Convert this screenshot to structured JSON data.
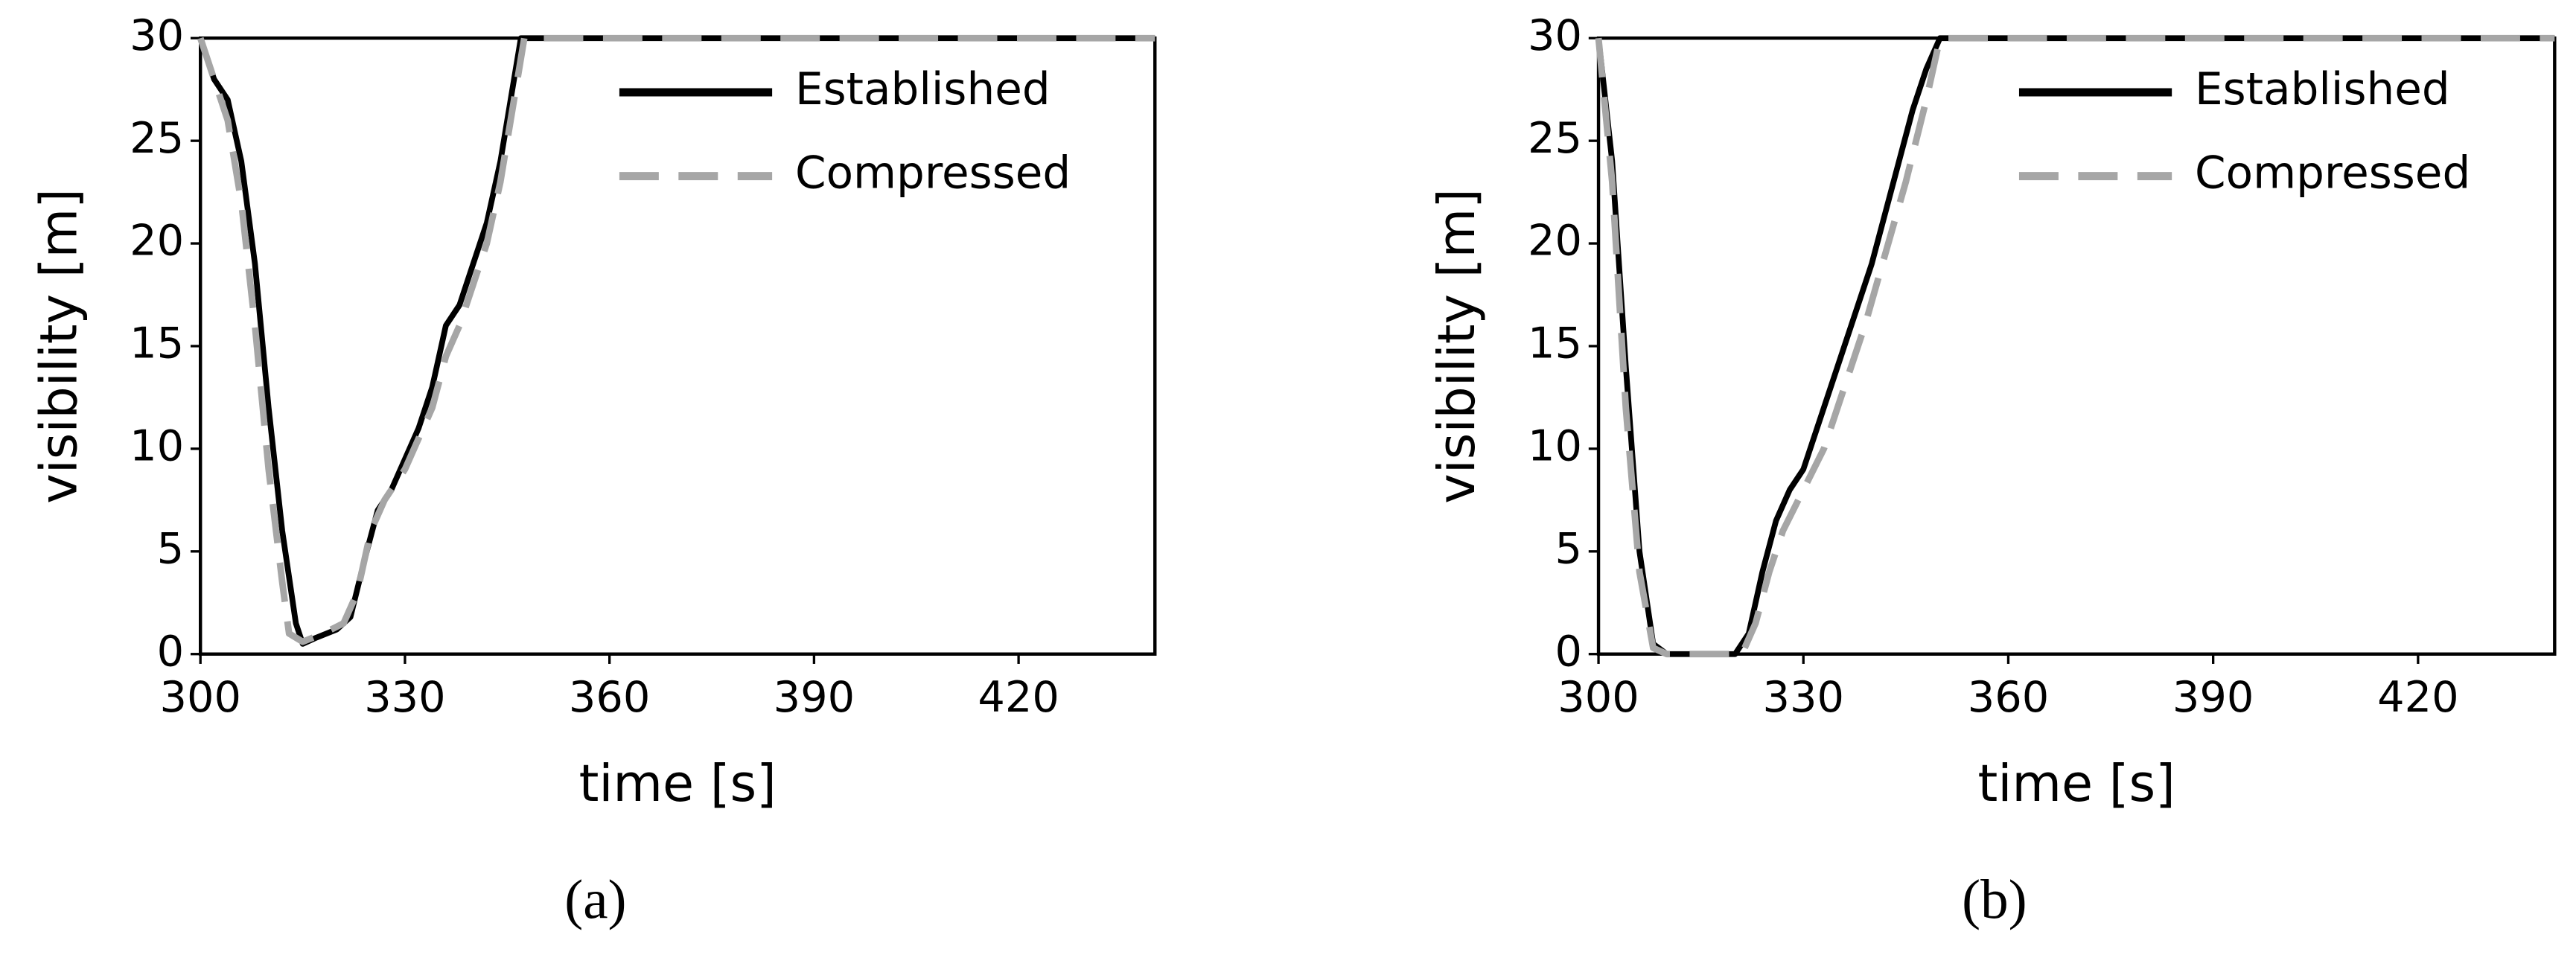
{
  "chart_data": [
    {
      "type": "line",
      "label": "(a)",
      "x_label": "time [s]",
      "y_label": "visibility [m]",
      "xlim": [
        300,
        440
      ],
      "xticks": [
        300,
        330,
        360,
        390,
        420
      ],
      "ylim": [
        0,
        30
      ],
      "yticks": [
        0,
        5,
        10,
        15,
        20,
        25,
        30
      ],
      "grid": false,
      "legend": "upper right",
      "series": [
        {
          "name": "Established",
          "color": "#000000",
          "dashed": false,
          "x": [
            300,
            302,
            304,
            306,
            308,
            310,
            312,
            314,
            315,
            317,
            320,
            322,
            324,
            326,
            328,
            330,
            332,
            334,
            336,
            338,
            340,
            342,
            344,
            346,
            347,
            440
          ],
          "values": [
            30,
            28,
            27,
            24,
            19,
            12,
            6,
            1.5,
            0.5,
            0.8,
            1.2,
            1.8,
            4.5,
            7,
            8,
            9.5,
            11,
            13,
            16,
            17,
            19,
            21,
            24,
            28,
            30,
            30
          ]
        },
        {
          "name": "Compressed",
          "color": "#a6a6a6",
          "dashed": true,
          "x": [
            300,
            302,
            304,
            306,
            308,
            310,
            312,
            313,
            315,
            318,
            321,
            323,
            325,
            327,
            330,
            332,
            334,
            336,
            338,
            340,
            342,
            344,
            346,
            347.5,
            440
          ],
          "values": [
            30,
            28,
            26,
            22,
            16,
            9,
            3.5,
            1,
            0.6,
            1,
            1.5,
            3,
            6,
            7.5,
            9,
            10.5,
            12,
            14.5,
            16,
            18,
            20,
            23,
            27,
            30,
            30
          ]
        }
      ]
    },
    {
      "type": "line",
      "label": "(b)",
      "x_label": "time [s]",
      "y_label": "visibility [m]",
      "xlim": [
        300,
        440
      ],
      "xticks": [
        300,
        330,
        360,
        390,
        420
      ],
      "ylim": [
        0,
        30
      ],
      "yticks": [
        0,
        5,
        10,
        15,
        20,
        25,
        30
      ],
      "grid": false,
      "legend": "upper right",
      "series": [
        {
          "name": "Established",
          "color": "#000000",
          "dashed": false,
          "x": [
            300,
            302,
            304,
            306,
            308,
            310,
            320,
            322,
            324,
            326,
            328,
            330,
            332,
            334,
            336,
            338,
            340,
            342,
            344,
            346,
            348,
            350,
            440
          ],
          "values": [
            30,
            24,
            14,
            5,
            0.5,
            0,
            0,
            1,
            4,
            6.5,
            8,
            9,
            11,
            13,
            15,
            17,
            19,
            21.5,
            24,
            26.5,
            28.5,
            30,
            30
          ]
        },
        {
          "name": "Compressed",
          "color": "#a6a6a6",
          "dashed": true,
          "x": [
            300,
            302,
            304,
            306,
            308,
            310,
            321,
            323,
            325,
            327,
            330,
            333,
            336,
            339,
            342,
            345,
            348,
            350,
            440
          ],
          "values": [
            30,
            23,
            12,
            4,
            0.3,
            0,
            0,
            1.5,
            4,
            6,
            8,
            10,
            13,
            16,
            19.5,
            23,
            27,
            30,
            30
          ]
        }
      ]
    }
  ]
}
